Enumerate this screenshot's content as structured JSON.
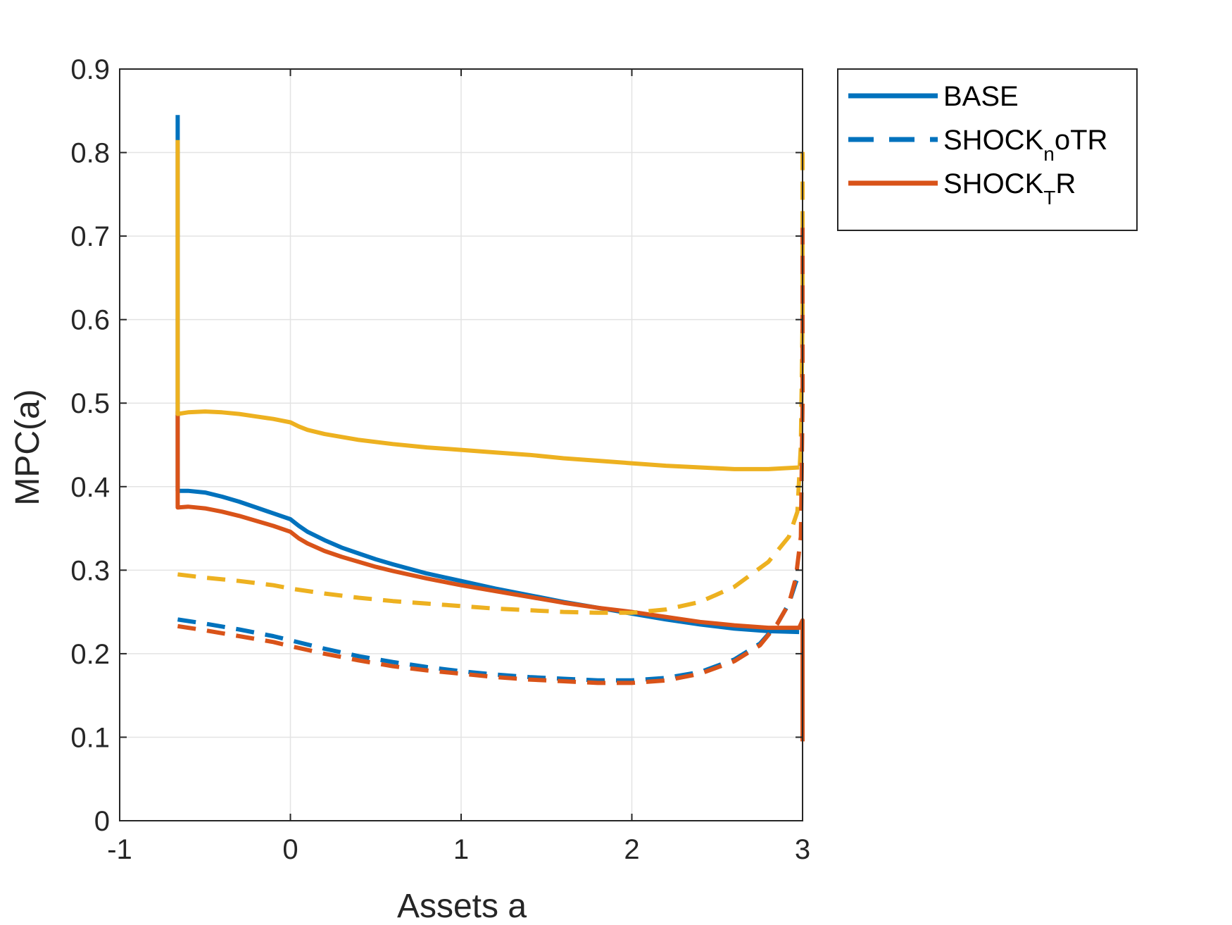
{
  "chart_data": {
    "type": "line",
    "title": "",
    "xlabel": "Assets a",
    "ylabel": "MPC(a)",
    "xlim": [
      -1,
      3
    ],
    "ylim": [
      0,
      0.9
    ],
    "xticks": [
      "-1",
      "0",
      "1",
      "2",
      "3"
    ],
    "yticks": [
      "0",
      "0.1",
      "0.2",
      "0.3",
      "0.4",
      "0.5",
      "0.6",
      "0.7",
      "0.8",
      "0.9"
    ],
    "grid": true,
    "legend_position": "outside-top-right",
    "legend": [
      {
        "series": "BASE",
        "base": "BASE",
        "sub": "",
        "tail": "",
        "color": "#0072BD",
        "dash": "solid"
      },
      {
        "series": "SHOCK_noTR",
        "base": "SHOCK",
        "sub": "n",
        "tail": "oTR",
        "color": "#0072BD",
        "dash": "dashed"
      },
      {
        "series": "SHOCK_TR",
        "base": "SHOCK",
        "sub": "T",
        "tail": "R",
        "color": "#D95319",
        "dash": "solid"
      }
    ],
    "series": [
      {
        "name": "BASE",
        "color": "#0072BD",
        "dash": "solid",
        "points": [
          [
            -0.66,
            0.845
          ],
          [
            -0.66,
            0.81
          ],
          [
            -0.66,
            0.395
          ],
          [
            -0.6,
            0.395
          ],
          [
            -0.5,
            0.393
          ],
          [
            -0.4,
            0.388
          ],
          [
            -0.3,
            0.382
          ],
          [
            -0.2,
            0.375
          ],
          [
            -0.1,
            0.368
          ],
          [
            0,
            0.361
          ],
          [
            0.05,
            0.353
          ],
          [
            0.1,
            0.346
          ],
          [
            0.2,
            0.336
          ],
          [
            0.3,
            0.327
          ],
          [
            0.4,
            0.32
          ],
          [
            0.5,
            0.313
          ],
          [
            0.6,
            0.307
          ],
          [
            0.8,
            0.296
          ],
          [
            1,
            0.287
          ],
          [
            1.2,
            0.278
          ],
          [
            1.4,
            0.27
          ],
          [
            1.6,
            0.262
          ],
          [
            1.8,
            0.255
          ],
          [
            2,
            0.248
          ],
          [
            2.2,
            0.241
          ],
          [
            2.4,
            0.235
          ],
          [
            2.6,
            0.23
          ],
          [
            2.8,
            0.227
          ],
          [
            2.98,
            0.226
          ]
        ]
      },
      {
        "name": "SHOCK_TR",
        "color": "#D95319",
        "dash": "solid",
        "points": [
          [
            -0.66,
            0.49
          ],
          [
            -0.66,
            0.375
          ],
          [
            -0.6,
            0.376
          ],
          [
            -0.5,
            0.374
          ],
          [
            -0.4,
            0.37
          ],
          [
            -0.3,
            0.365
          ],
          [
            -0.2,
            0.359
          ],
          [
            -0.1,
            0.353
          ],
          [
            0,
            0.346
          ],
          [
            0.05,
            0.338
          ],
          [
            0.1,
            0.332
          ],
          [
            0.2,
            0.323
          ],
          [
            0.3,
            0.316
          ],
          [
            0.4,
            0.31
          ],
          [
            0.5,
            0.304
          ],
          [
            0.6,
            0.299
          ],
          [
            0.8,
            0.29
          ],
          [
            1,
            0.282
          ],
          [
            1.2,
            0.275
          ],
          [
            1.4,
            0.268
          ],
          [
            1.6,
            0.261
          ],
          [
            1.8,
            0.255
          ],
          [
            2,
            0.25
          ],
          [
            2.2,
            0.244
          ],
          [
            2.4,
            0.238
          ],
          [
            2.6,
            0.234
          ],
          [
            2.8,
            0.231
          ],
          [
            2.98,
            0.231
          ],
          [
            3.0,
            0.24
          ],
          [
            3.0,
            0.095
          ]
        ]
      },
      {
        "name": "",
        "color": "#EDB120",
        "dash": "solid",
        "points": [
          [
            -0.66,
            0.815
          ],
          [
            -0.66,
            0.487
          ],
          [
            -0.6,
            0.489
          ],
          [
            -0.5,
            0.49
          ],
          [
            -0.4,
            0.489
          ],
          [
            -0.3,
            0.487
          ],
          [
            -0.2,
            0.484
          ],
          [
            -0.1,
            0.481
          ],
          [
            0,
            0.477
          ],
          [
            0.05,
            0.472
          ],
          [
            0.1,
            0.468
          ],
          [
            0.2,
            0.463
          ],
          [
            0.4,
            0.456
          ],
          [
            0.6,
            0.451
          ],
          [
            0.8,
            0.447
          ],
          [
            1,
            0.444
          ],
          [
            1.2,
            0.441
          ],
          [
            1.4,
            0.438
          ],
          [
            1.6,
            0.434
          ],
          [
            1.8,
            0.431
          ],
          [
            2,
            0.428
          ],
          [
            2.2,
            0.425
          ],
          [
            2.4,
            0.423
          ],
          [
            2.6,
            0.421
          ],
          [
            2.8,
            0.421
          ],
          [
            2.98,
            0.423
          ]
        ]
      },
      {
        "name": "",
        "color": "#EDB120",
        "dash": "dashed",
        "points": [
          [
            -0.66,
            0.295
          ],
          [
            -0.5,
            0.291
          ],
          [
            -0.3,
            0.287
          ],
          [
            -0.1,
            0.282
          ],
          [
            0,
            0.278
          ],
          [
            0.2,
            0.272
          ],
          [
            0.4,
            0.267
          ],
          [
            0.6,
            0.263
          ],
          [
            0.8,
            0.26
          ],
          [
            1,
            0.257
          ],
          [
            1.2,
            0.254
          ],
          [
            1.4,
            0.252
          ],
          [
            1.6,
            0.25
          ],
          [
            1.8,
            0.249
          ],
          [
            2,
            0.249
          ],
          [
            2.2,
            0.253
          ],
          [
            2.4,
            0.262
          ],
          [
            2.6,
            0.28
          ],
          [
            2.8,
            0.31
          ],
          [
            2.92,
            0.34
          ],
          [
            2.97,
            0.37
          ],
          [
            2.99,
            0.45
          ],
          [
            3.0,
            0.6
          ],
          [
            3.0,
            0.81
          ]
        ]
      },
      {
        "name": "SHOCK_noTR",
        "color": "#0072BD",
        "dash": "dashed",
        "points": [
          [
            -0.66,
            0.241
          ],
          [
            -0.5,
            0.236
          ],
          [
            -0.3,
            0.229
          ],
          [
            -0.1,
            0.221
          ],
          [
            0,
            0.216
          ],
          [
            0.2,
            0.206
          ],
          [
            0.4,
            0.197
          ],
          [
            0.6,
            0.19
          ],
          [
            0.8,
            0.184
          ],
          [
            1,
            0.179
          ],
          [
            1.2,
            0.175
          ],
          [
            1.4,
            0.172
          ],
          [
            1.6,
            0.17
          ],
          [
            1.8,
            0.168
          ],
          [
            2,
            0.168
          ],
          [
            2.2,
            0.171
          ],
          [
            2.4,
            0.178
          ],
          [
            2.6,
            0.193
          ],
          [
            2.75,
            0.212
          ],
          [
            2.85,
            0.235
          ],
          [
            2.92,
            0.26
          ],
          [
            2.96,
            0.285
          ],
          [
            2.99,
            0.3
          ]
        ]
      },
      {
        "name": "",
        "color": "#D95319",
        "dash": "dashed",
        "points": [
          [
            -0.66,
            0.233
          ],
          [
            -0.5,
            0.228
          ],
          [
            -0.3,
            0.221
          ],
          [
            -0.1,
            0.214
          ],
          [
            0,
            0.209
          ],
          [
            0.2,
            0.2
          ],
          [
            0.4,
            0.192
          ],
          [
            0.6,
            0.185
          ],
          [
            0.8,
            0.18
          ],
          [
            1,
            0.176
          ],
          [
            1.2,
            0.172
          ],
          [
            1.4,
            0.169
          ],
          [
            1.6,
            0.167
          ],
          [
            1.8,
            0.165
          ],
          [
            2,
            0.165
          ],
          [
            2.2,
            0.168
          ],
          [
            2.4,
            0.176
          ],
          [
            2.6,
            0.191
          ],
          [
            2.75,
            0.21
          ],
          [
            2.85,
            0.235
          ],
          [
            2.92,
            0.26
          ],
          [
            2.96,
            0.29
          ],
          [
            2.99,
            0.34
          ],
          [
            3.0,
            0.5
          ],
          [
            3.0,
            0.71
          ]
        ]
      }
    ]
  }
}
